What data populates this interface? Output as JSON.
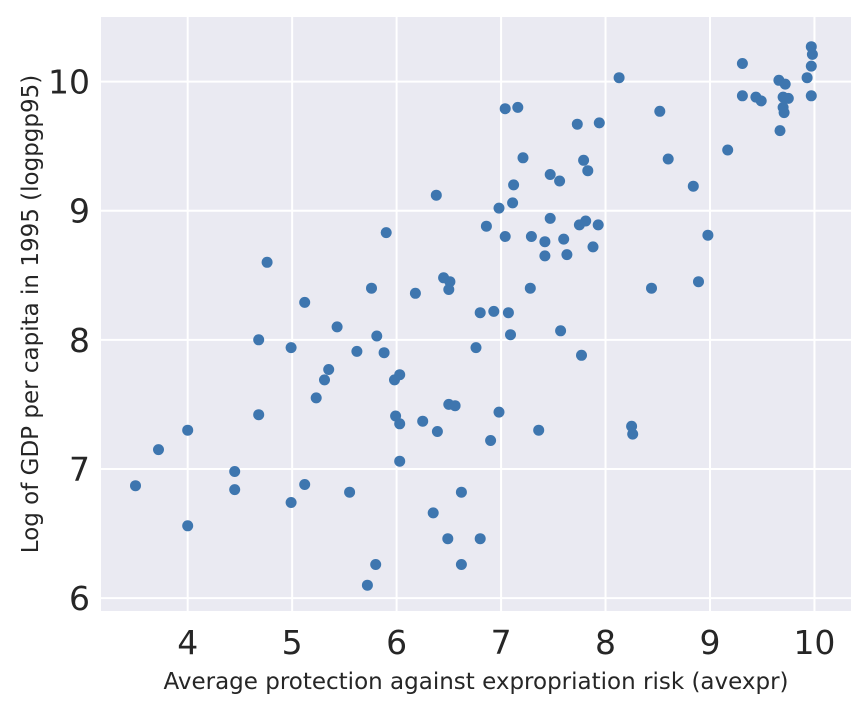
{
  "figure": {
    "background_color": "#ffffff",
    "plot_background_color": "#eaeaf2",
    "grid_color": "#ffffff",
    "marker_color": "#3e76af",
    "text_color": "#262626"
  },
  "chart_data": {
    "type": "scatter",
    "title": "",
    "xlabel": "Average protection against expropriation risk (avexpr)",
    "ylabel": "Log of GDP per capita in 1995 (logpgp95)",
    "xlim": [
      3.17,
      10.35
    ],
    "ylim": [
      5.9,
      10.5
    ],
    "xticks": [
      4,
      5,
      6,
      7,
      8,
      9,
      10
    ],
    "yticks": [
      6,
      7,
      8,
      9,
      10
    ],
    "grid": true,
    "legend_position": "none",
    "marker": {
      "shape": "circle",
      "radius_px": 5.5
    },
    "points": [
      [
        4.76,
        8.6
      ],
      [
        5.12,
        8.29
      ],
      [
        7.04,
        9.79
      ],
      [
        7.16,
        9.8
      ],
      [
        7.73,
        9.67
      ],
      [
        7.94,
        9.68
      ],
      [
        7.21,
        9.41
      ],
      [
        7.47,
        9.28
      ],
      [
        7.56,
        9.23
      ],
      [
        7.79,
        9.39
      ],
      [
        7.83,
        9.31
      ],
      [
        7.12,
        9.2
      ],
      [
        6.38,
        9.12
      ],
      [
        7.11,
        9.06
      ],
      [
        6.98,
        9.02
      ],
      [
        5.9,
        8.83
      ],
      [
        6.86,
        8.88
      ],
      [
        7.47,
        8.94
      ],
      [
        7.81,
        8.92
      ],
      [
        7.75,
        8.89
      ],
      [
        7.93,
        8.89
      ],
      [
        7.04,
        8.8
      ],
      [
        7.29,
        8.8
      ],
      [
        7.42,
        8.76
      ],
      [
        7.6,
        8.78
      ],
      [
        7.42,
        8.65
      ],
      [
        7.63,
        8.66
      ],
      [
        7.88,
        8.72
      ],
      [
        6.45,
        8.48
      ],
      [
        6.51,
        8.45
      ],
      [
        6.5,
        8.39
      ],
      [
        5.76,
        8.4
      ],
      [
        6.18,
        8.36
      ],
      [
        7.28,
        8.4
      ],
      [
        6.8,
        8.21
      ],
      [
        6.93,
        8.22
      ],
      [
        7.07,
        8.21
      ],
      [
        8.13,
        10.03
      ],
      [
        9.31,
        10.14
      ],
      [
        9.97,
        10.27
      ],
      [
        9.98,
        10.21
      ],
      [
        9.97,
        10.12
      ],
      [
        9.93,
        10.03
      ],
      [
        9.97,
        9.89
      ],
      [
        9.66,
        10.01
      ],
      [
        9.72,
        9.98
      ],
      [
        9.7,
        9.88
      ],
      [
        9.75,
        9.87
      ],
      [
        9.7,
        9.8
      ],
      [
        9.71,
        9.76
      ],
      [
        9.67,
        9.62
      ],
      [
        9.31,
        9.89
      ],
      [
        9.44,
        9.88
      ],
      [
        9.49,
        9.85
      ],
      [
        8.52,
        9.77
      ],
      [
        9.17,
        9.47
      ],
      [
        8.6,
        9.4
      ],
      [
        8.84,
        9.19
      ],
      [
        8.98,
        8.81
      ],
      [
        8.89,
        8.45
      ],
      [
        8.44,
        8.4
      ],
      [
        4.68,
        8.0
      ],
      [
        4.99,
        7.94
      ],
      [
        5.43,
        8.1
      ],
      [
        5.35,
        7.77
      ],
      [
        5.31,
        7.69
      ],
      [
        5.23,
        7.55
      ],
      [
        4.68,
        7.42
      ],
      [
        4.0,
        7.3
      ],
      [
        3.72,
        7.15
      ],
      [
        4.45,
        6.98
      ],
      [
        4.45,
        6.84
      ],
      [
        3.5,
        6.87
      ],
      [
        5.12,
        6.88
      ],
      [
        4.99,
        6.74
      ],
      [
        4.0,
        6.56
      ],
      [
        5.81,
        8.03
      ],
      [
        5.62,
        7.91
      ],
      [
        5.88,
        7.9
      ],
      [
        6.03,
        7.73
      ],
      [
        5.98,
        7.69
      ],
      [
        6.76,
        7.94
      ],
      [
        7.09,
        8.04
      ],
      [
        7.57,
        8.07
      ],
      [
        7.77,
        7.88
      ],
      [
        6.5,
        7.5
      ],
      [
        6.56,
        7.49
      ],
      [
        5.99,
        7.41
      ],
      [
        6.03,
        7.35
      ],
      [
        6.25,
        7.37
      ],
      [
        6.39,
        7.29
      ],
      [
        6.98,
        7.44
      ],
      [
        6.9,
        7.22
      ],
      [
        7.36,
        7.3
      ],
      [
        6.03,
        7.06
      ],
      [
        6.62,
        6.82
      ],
      [
        5.55,
        6.82
      ],
      [
        6.35,
        6.66
      ],
      [
        6.49,
        6.46
      ],
      [
        6.8,
        6.46
      ],
      [
        6.62,
        6.26
      ],
      [
        5.8,
        6.26
      ],
      [
        5.72,
        6.1
      ],
      [
        8.25,
        7.33
      ],
      [
        8.26,
        7.27
      ]
    ]
  }
}
